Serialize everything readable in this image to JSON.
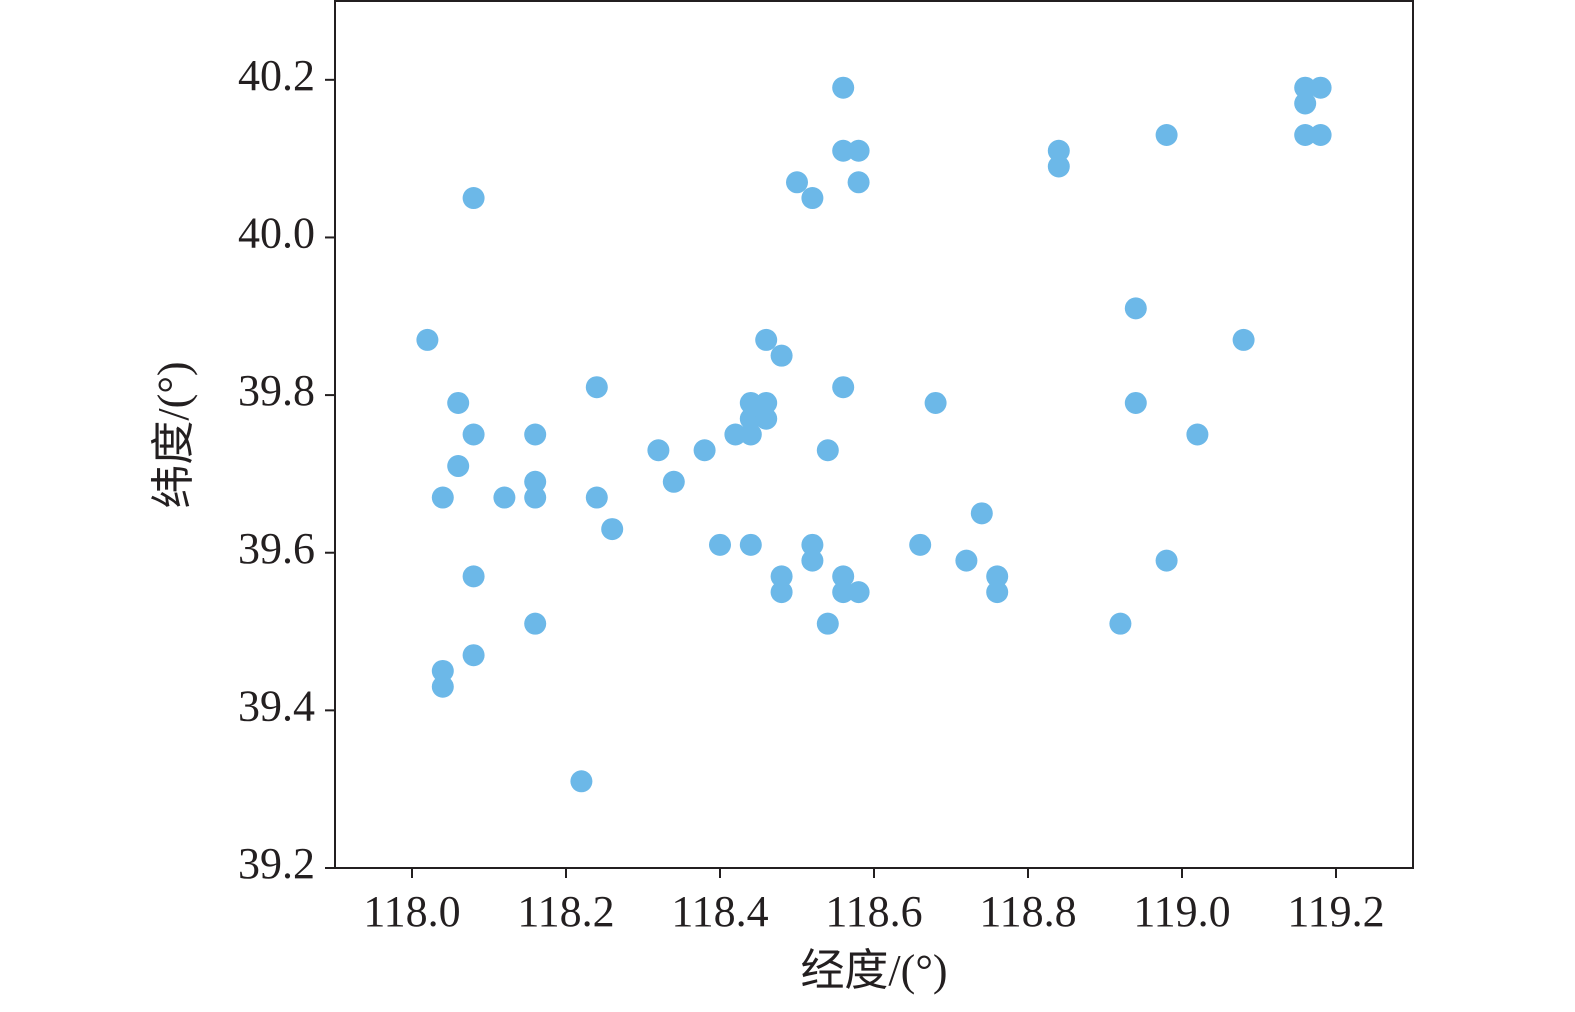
{
  "chart_data": {
    "type": "scatter",
    "x_label": "经度/(°)",
    "y_label": "纬度/(°)",
    "color": "#6cb8e8",
    "xlim": [
      117.9,
      119.3
    ],
    "ylim": [
      39.2,
      40.3
    ],
    "xticks": [
      {
        "value": 118,
        "label": "118.0"
      },
      118.2,
      118.4,
      118.6,
      118.8,
      {
        "value": 119,
        "label": "119.0"
      },
      119.2
    ],
    "yticks": [
      39.2,
      39.4,
      39.6,
      39.8,
      {
        "value": 40,
        "label": "40.0"
      },
      40.2
    ],
    "x": [
      118.02,
      118.04,
      118.04,
      118.04,
      118.06,
      118.06,
      118.08,
      118.08,
      118.08,
      118.08,
      118.12,
      118.16,
      118.16,
      118.16,
      118.16,
      118.22,
      118.24,
      118.24,
      118.26,
      118.32,
      118.34,
      118.38,
      118.4,
      118.42,
      118.44,
      118.44,
      118.44,
      118.44,
      118.46,
      118.46,
      118.46,
      118.48,
      118.48,
      118.48,
      118.5,
      118.52,
      118.52,
      118.52,
      118.54,
      118.54,
      118.56,
      118.56,
      118.56,
      118.56,
      118.56,
      118.58,
      118.58,
      118.58,
      118.66,
      118.68,
      118.72,
      118.74,
      118.76,
      118.76,
      118.84,
      118.84,
      118.92,
      118.94,
      118.94,
      118.98,
      118.98,
      119.02,
      119.08,
      119.16,
      119.16,
      119.16,
      119.18,
      119.18
    ],
    "y": [
      39.87,
      39.67,
      39.45,
      39.43,
      39.79,
      39.71,
      40.05,
      39.75,
      39.57,
      39.47,
      39.67,
      39.75,
      39.69,
      39.67,
      39.51,
      39.31,
      39.81,
      39.67,
      39.63,
      39.73,
      39.69,
      39.73,
      39.61,
      39.75,
      39.79,
      39.77,
      39.75,
      39.61,
      39.87,
      39.79,
      39.77,
      39.85,
      39.57,
      39.55,
      40.07,
      40.05,
      39.61,
      39.59,
      39.73,
      39.51,
      40.19,
      40.11,
      39.81,
      39.57,
      39.55,
      40.11,
      40.07,
      39.55,
      39.61,
      39.79,
      39.59,
      39.65,
      39.57,
      39.55,
      40.11,
      40.09,
      39.51,
      39.91,
      39.79,
      40.13,
      39.59,
      39.75,
      39.87,
      40.19,
      40.17,
      40.13,
      40.19,
      40.13
    ]
  }
}
